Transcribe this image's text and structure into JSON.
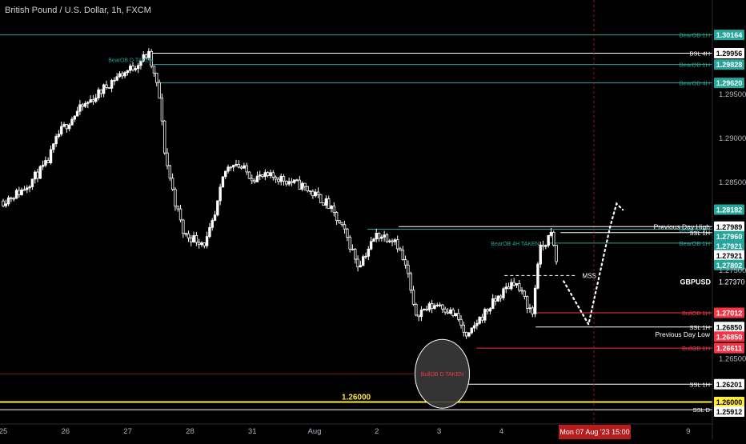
{
  "title": "British Pound / U.S. Dollar, 1h, FXCM",
  "chart_data": {
    "type": "candlestick",
    "symbol": "GBPUSD",
    "timeframe": "1h",
    "ylim": [
      1.2575,
      1.3056
    ],
    "x_range": [
      0,
      15
    ],
    "colors": {
      "up": "#ffffff",
      "down": "#ffffff",
      "background": "#000000"
    },
    "x_ticks": [
      {
        "label": "25",
        "x": 0
      },
      {
        "label": "26",
        "x": 1
      },
      {
        "label": "27",
        "x": 2
      },
      {
        "label": "28",
        "x": 3
      },
      {
        "label": "31",
        "x": 4
      },
      {
        "label": "Aug",
        "x": 5
      },
      {
        "label": "2",
        "x": 6
      },
      {
        "label": "3",
        "x": 7
      },
      {
        "label": "4",
        "x": 8
      },
      {
        "label": "7",
        "x": 9
      },
      {
        "label": "8",
        "x": 10
      },
      {
        "label": "9",
        "x": 11
      }
    ],
    "y_ticks": [
      "1.29500",
      "1.29000",
      "1.28500",
      "1.27500",
      "1.26500"
    ],
    "anchors": [
      {
        "x": 0.0,
        "y": 1.2828
      },
      {
        "x": 0.3,
        "y": 1.284
      },
      {
        "x": 0.7,
        "y": 1.287
      },
      {
        "x": 0.9,
        "y": 1.2905
      },
      {
        "x": 1.2,
        "y": 1.293
      },
      {
        "x": 1.5,
        "y": 1.2948
      },
      {
        "x": 1.8,
        "y": 1.2968
      },
      {
        "x": 2.05,
        "y": 1.2978
      },
      {
        "x": 2.33,
        "y": 1.2995
      },
      {
        "x": 2.5,
        "y": 1.295
      },
      {
        "x": 2.6,
        "y": 1.288
      },
      {
        "x": 2.75,
        "y": 1.283
      },
      {
        "x": 2.9,
        "y": 1.279
      },
      {
        "x": 3.25,
        "y": 1.278
      },
      {
        "x": 3.4,
        "y": 1.281
      },
      {
        "x": 3.55,
        "y": 1.286
      },
      {
        "x": 3.7,
        "y": 1.2873
      },
      {
        "x": 4.0,
        "y": 1.2855
      },
      {
        "x": 4.4,
        "y": 1.2855
      },
      {
        "x": 4.8,
        "y": 1.2845
      },
      {
        "x": 5.2,
        "y": 1.2825
      },
      {
        "x": 5.5,
        "y": 1.279
      },
      {
        "x": 5.7,
        "y": 1.2755
      },
      {
        "x": 6.0,
        "y": 1.279
      },
      {
        "x": 6.3,
        "y": 1.2785
      },
      {
        "x": 6.5,
        "y": 1.2745
      },
      {
        "x": 6.6,
        "y": 1.27
      },
      {
        "x": 7.0,
        "y": 1.2712
      },
      {
        "x": 7.3,
        "y": 1.2695
      },
      {
        "x": 7.45,
        "y": 1.267
      },
      {
        "x": 7.6,
        "y": 1.269
      },
      {
        "x": 7.9,
        "y": 1.2715
      },
      {
        "x": 8.2,
        "y": 1.2738
      },
      {
        "x": 8.5,
        "y": 1.27
      },
      {
        "x": 8.6,
        "y": 1.277
      },
      {
        "x": 8.8,
        "y": 1.279
      },
      {
        "x": 8.92,
        "y": 1.2745
      }
    ],
    "levels": [
      {
        "label": "BearOB 1H",
        "price": "1.30164",
        "x_from": -0.1,
        "color": "#26a69a",
        "label_color": "#26a69a",
        "tag_text": "#ffffff"
      },
      {
        "label": "BSL 4H",
        "price": "1.29956",
        "x_from": 2.35,
        "color": "#ffffff",
        "label_color": "#ffffff",
        "tag_bg": "#ffffff",
        "tag_text": "#000000"
      },
      {
        "label": "BearOB 1H",
        "price": "1.29828",
        "x_from": 2.35,
        "color": "#26a69a",
        "label_color": "#26a69a",
        "tag_text": "#ffffff"
      },
      {
        "label": "BearOB 4H",
        "price": "1.29620",
        "x_from": 2.5,
        "color": "#26a69a",
        "label_color": "#26a69a",
        "tag_text": "#ffffff"
      },
      {
        "label": "",
        "price": "1.28182",
        "x_from": null,
        "color": "#26a69a",
        "tag_text": "#ffffff"
      },
      {
        "label": "",
        "price": "1.27989",
        "x_from": null,
        "color": "#ffffff",
        "tag_bg": "#ffffff",
        "tag_text": "#000000"
      },
      {
        "label": "BearOB 1H",
        "price": "1.27960",
        "x_from": 5.85,
        "color": "#26a69a",
        "label_color": "#26a69a",
        "tag_text": "#ffffff"
      },
      {
        "label": "",
        "price": "1.27921",
        "x_from": null,
        "color": "#26a69a",
        "tag_text": "#ffffff"
      },
      {
        "label": "SSL 1H",
        "price": "1.27921",
        "x_from": 8.95,
        "color": "#ffffff",
        "label_color": "#ffffff",
        "tag_bg": "#ffffff",
        "tag_text": "#000000"
      },
      {
        "label": "BearOB 1H",
        "price": "1.27802",
        "x_from": 8.75,
        "color": "#26a69a",
        "label_color": "#26a69a",
        "tag_text": "#ffffff"
      },
      {
        "label": "BullOB 1H",
        "price": "1.27012",
        "x_from": 8.5,
        "color": "#f23645",
        "label_color": "#f23645",
        "tag_text": "#ffffff"
      },
      {
        "label": "SSL 1H",
        "price": "1.26850",
        "x_from": 8.55,
        "color": "#ffffff",
        "label_color": "#ffffff",
        "tag_bg": "#ffffff",
        "tag_text": "#000000"
      },
      {
        "label": "",
        "price": "1.26850",
        "x_from": null,
        "color": "#f23645",
        "tag_text": "#ffffff"
      },
      {
        "label": "BullOB 1H",
        "price": "1.26611",
        "x_from": 7.6,
        "color": "#f23645",
        "label_color": "#f23645",
        "tag_text": "#ffffff"
      },
      {
        "label": "SSL 1H",
        "price": "1.26201",
        "x_from": 7.45,
        "color": "#ffffff",
        "label_color": "#ffffff",
        "tag_bg": "#ffffff",
        "tag_text": "#000000"
      },
      {
        "label": "",
        "price": "1.26000",
        "x_from": -0.1,
        "color": "#ffeb3b",
        "tag_bg": "#ffeb3b",
        "tag_text": "#000000"
      },
      {
        "label": "SSL D",
        "price": "1.25912",
        "x_from": -0.1,
        "color": "#ffffff",
        "label_color": "#ffffff",
        "tag_bg": "#ffffff",
        "tag_text": "#000000"
      }
    ],
    "current_price": {
      "symbol": "GBPUSD",
      "price": "1.27370"
    },
    "annotations": {
      "prev_day_high": "Previous Day High",
      "prev_day_low": "Previous Day Low",
      "bearob_d_taken": "BearOB D TAKEN",
      "bearob_4h_taken": "BearOB 4H TAKEN",
      "bullob_d_taken": "BullOB D TAKEN",
      "mss": "MSS",
      "round_number": "1.26000"
    },
    "date_label": "Mon 07 Aug '23   15:00"
  },
  "colors": {
    "green": "#26a69a",
    "red": "#f23645",
    "yellow": "#ffeb3b",
    "axis_text": "#b2b5be",
    "crosshair_tag": "#b71c1c"
  }
}
